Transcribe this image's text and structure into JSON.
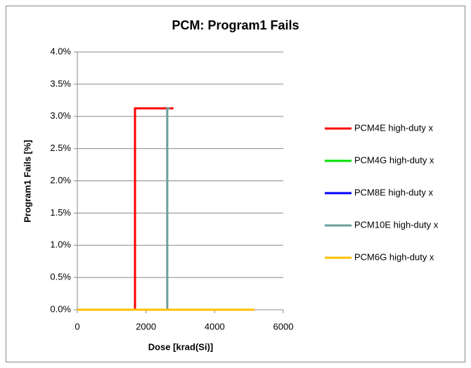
{
  "chart_data": {
    "type": "line",
    "title": "PCM: Program1 Fails",
    "xlabel": "Dose [krad(Si)]",
    "ylabel": "Program1 Fails [%]",
    "xlim": [
      0,
      6000
    ],
    "xticks": [
      0,
      2000,
      4000,
      6000
    ],
    "ylim": [
      0,
      4
    ],
    "yticks": [
      {
        "value": 0,
        "label": "0.0%"
      },
      {
        "value": 0.5,
        "label": "0.5%"
      },
      {
        "value": 1,
        "label": "1.0%"
      },
      {
        "value": 1.5,
        "label": "1.5%"
      },
      {
        "value": 2,
        "label": "2.0%"
      },
      {
        "value": 2.5,
        "label": "2.5%"
      },
      {
        "value": 3,
        "label": "3.0%"
      },
      {
        "value": 3.5,
        "label": "3.5%"
      },
      {
        "value": 4,
        "label": "4.0%"
      }
    ],
    "grid": true,
    "legend": "right",
    "series": [
      {
        "name": "PCM4E high-duty x",
        "color": "#ff0000",
        "x": [
          0,
          1680,
          1680,
          2800
        ],
        "values": [
          0,
          0,
          3.125,
          3.125
        ]
      },
      {
        "name": "PCM4G high-duty x",
        "color": "#00e000",
        "x": [
          0,
          5160
        ],
        "values": [
          0,
          0
        ]
      },
      {
        "name": "PCM8E high-duty x",
        "color": "#0000ff",
        "x": [
          0,
          5160
        ],
        "values": [
          0,
          0
        ]
      },
      {
        "name": "PCM10E high-duty x",
        "color": "#6b9c9c",
        "x": [
          0,
          2620,
          2620,
          2700
        ],
        "values": [
          0,
          0,
          3.125,
          3.125
        ]
      },
      {
        "name": "PCM6G high-duty x",
        "color": "#ffc000",
        "x": [
          0,
          5160
        ],
        "values": [
          0,
          0
        ]
      }
    ]
  }
}
